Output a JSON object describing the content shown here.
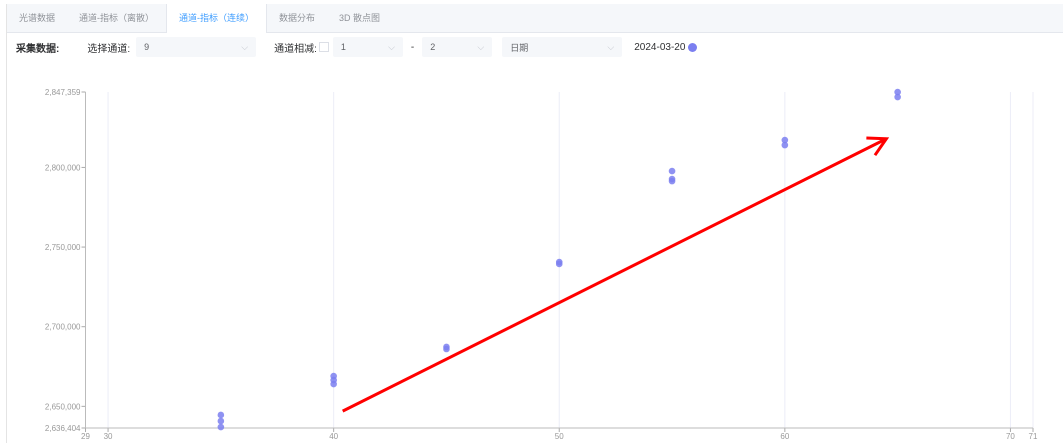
{
  "tabs": [
    {
      "label": "光谱数据"
    },
    {
      "label": "通道-指标（离散）"
    },
    {
      "label": "通道-指标（连续）",
      "active": true
    },
    {
      "label": "数据分布"
    },
    {
      "label": "3D 散点图"
    }
  ],
  "toolbar": {
    "collect_label": "采集数据:",
    "channel_label": "选择通道:",
    "channel_value": "9",
    "subtract_label": "通道相减:",
    "subtract_a": "1",
    "dash": "-",
    "subtract_b": "2",
    "date_select": "日期",
    "date_value": "2024-03-20",
    "legend_color": "#7b7ff0"
  },
  "chart_data": {
    "type": "scatter",
    "xlim": [
      29,
      71
    ],
    "ylim": [
      2636404,
      2847359
    ],
    "x_ticks": [
      "29",
      "30",
      "40",
      "50",
      "60",
      "70",
      "71"
    ],
    "y_ticks": [
      "2,847,359",
      "2,800,000",
      "2,750,000",
      "2,700,000",
      "2,650,000",
      "2,636,404"
    ],
    "grid": "vertical",
    "point_color": "#7b7ff0",
    "series": [
      {
        "name": "2024-03-20",
        "points": [
          [
            35,
            2644600
          ],
          [
            35,
            2640800
          ],
          [
            35,
            2637000
          ],
          [
            40,
            2669000
          ],
          [
            40,
            2666500
          ],
          [
            40,
            2664000
          ],
          [
            45,
            2687300
          ],
          [
            45,
            2686000
          ],
          [
            50,
            2740600
          ],
          [
            50,
            2739400
          ],
          [
            55,
            2797700
          ],
          [
            55,
            2792700
          ],
          [
            55,
            2791400
          ],
          [
            60,
            2817200
          ],
          [
            60,
            2814000
          ],
          [
            65,
            2847300
          ],
          [
            65,
            2844200
          ]
        ]
      }
    ],
    "annotation": {
      "type": "arrow",
      "color": "#ff0000",
      "from": [
        40.4,
        2647000
      ],
      "to": [
        64.5,
        2818000
      ]
    }
  }
}
